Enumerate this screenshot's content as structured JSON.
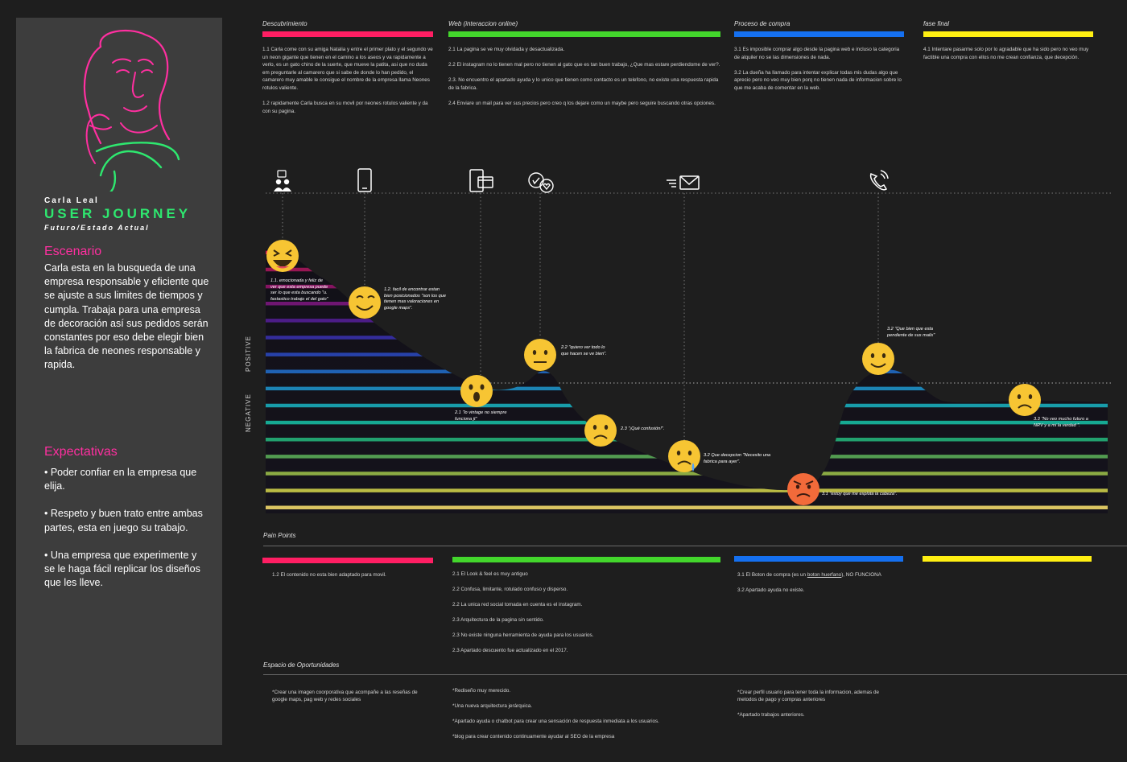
{
  "persona": {
    "name": "Carla Leal",
    "title": "USER JOURNEY",
    "subtitle": "Futuro/Estado Actual"
  },
  "scenario": {
    "heading": "Escenario",
    "text": "Carla esta en la busqueda de una empresa responsable y eficiente que se ajuste a sus limites de tiempos y cumpla. Trabaja para una empresa de decoración así sus pedidos serán constantes por eso debe elegir bien la fabrica de neones responsable y rapida."
  },
  "expectations": {
    "heading": "Expectativas",
    "items": [
      "• Poder confiar en la empresa que elija.",
      "• Respeto y buen trato entre ambas partes, esta en juego su trabajo.",
      "• Una empresa que experimente y se le haga fácil replicar los diseños que les lleve."
    ]
  },
  "stages": [
    {
      "title": "Descubrimiento",
      "color": "#ff1e63",
      "items": [
        "1.1 Carla come con su amiga Natalia y entre el primer plato y el segundo ve un neon gigante que tienen en el camino a los aseos y va rapidamente a verlo, es un gato chino de la suerte, que mueve la patita, asi que no duda em preguntarle al camarero que si sabe de donde lo han pedido, el camarero muy amable le consigue el nombre de la empresa llama Neones rotulos valiente.",
        "1.2 rapidamente Carla busca en su movil por neones rotulos valiente y da con su pagina."
      ]
    },
    {
      "title": "Web (interaccion online)",
      "color": "#43d62c",
      "items": [
        "2.1 La pagina se ve muy olvidada y desactualizada.",
        "2.2 El instagram no lo tienen mal pero no tienen al gato que es tan buen trabajo, ¿Que mas estare perdiendome de ver?.",
        "2.3. No encuentro el apartado ayuda y lo unico que tienen como contacto es un telefono, no existe una respuesta rapida de la fabrica.",
        "2.4 Enviare un mail para ver sus precios pero creo q los dejare como un maybe pero seguire buscando otras opciones."
      ]
    },
    {
      "title": "Proceso de compra",
      "color": "#1570f0",
      "items": [
        "3.1 Es imposible comprar algo desde la pagina web e incluso la categoria de alquiler no se las dimensiones de nada.",
        "3.2 La dueña ha llamado para intentar explicar todas mis dudas algo que aprecio pero no veo muy bien porq no tienen nada de informacion sobre lo que me acaba de comentar en la web."
      ]
    },
    {
      "title": "fase final",
      "color": "#ffef12",
      "items": [
        "4.1 Intentare pasarme solo por lo agradable que ha sido pero no veo muy factible una compra con ellos no me crean confianza, que decepción."
      ]
    }
  ],
  "graph": {
    "positive_label": "POSITIVE",
    "negative_label": "NEGATIVE",
    "touchpoint_icons": [
      "people-chat-icon",
      "smartphone-icon",
      "web-windows-icon",
      "social-reactions-icon",
      "email-icon",
      "phone-call-icon"
    ],
    "moments": [
      {
        "id": "1.1",
        "emotion": "laughing",
        "note": "1.1. emocionada y feliz de ver que esta empresa puede ser lo que esta buscando \"u. fastastico trabajo el del gato\""
      },
      {
        "id": "1.2",
        "emotion": "smiling",
        "note": "1.2.  facil de encontrar estan bien posicionados \"son los que tienen mas valoraciones en google maps\"."
      },
      {
        "id": "2.1",
        "emotion": "surprised",
        "note": "2.1 \"lo vintage no siempre funciona jt\""
      },
      {
        "id": "2.2",
        "emotion": "neutral",
        "note": "2.2 \"quiero ver todo lo que hacen se ve bien\"."
      },
      {
        "id": "2.3",
        "emotion": "sad",
        "note": "2.3 \"¡Qué confusión!\"."
      },
      {
        "id": "3.2a",
        "emotion": "disappointed",
        "note": "3.2  Que decepcion \"Necesito una fabrica para ayer\"."
      },
      {
        "id": "3.1",
        "emotion": "angry",
        "note": "3.1 \"estoy que me explota la cabeza\"."
      },
      {
        "id": "3.2",
        "emotion": "smiling",
        "note": "3.2 \"Que bien que esta pendiente de sus mails\""
      },
      {
        "id": "3.3",
        "emotion": "sad",
        "note": "3.3 \"No veo mucho futuro a NRV y a mi la verdad \"."
      }
    ],
    "stripe_colors": [
      "#ff1e63",
      "#c21c6a",
      "#a8187a",
      "#8a1b8e",
      "#5d22a7",
      "#3e35bf",
      "#2d4fcc",
      "#2474d6",
      "#1f9bd6",
      "#1bb8c8",
      "#17c4aa",
      "#25b87e",
      "#5cb05a",
      "#9bc04a",
      "#cfd04a",
      "#efd86a"
    ]
  },
  "pain_points": {
    "heading": "Pain Points",
    "columns": [
      {
        "color": "#ff1e63",
        "items": [
          "1.2 El contenido no esta bien adaptado para movil."
        ]
      },
      {
        "color": "#43d62c",
        "items": [
          "2.1 El Look & feel es muy antiguo",
          "2.2 Confusa, limitante, rotulado confuso y disperso.",
          "2.2 La unica red social tomada en cuenta es el instagram.",
          "2.3 Arquitectura de la pagina sin sentido.",
          "2.3 No existe ninguna herramienta de ayuda para los usuarios.",
          "2.3 Apartado descuento fue actualizado en el 2017."
        ]
      },
      {
        "color": "#1570f0",
        "items": [
          "3.1 El Boton de compra (es un ",
          "boton huerfano",
          "), NO FUNCIONA",
          "3.2 Apartado ayuda no existe."
        ]
      },
      {
        "color": "#ffef12",
        "items": []
      }
    ]
  },
  "opportunities": {
    "heading": "Espacio de Oportunidades",
    "columns": [
      {
        "items": [
          "*Crear una imagen coorporativa que acompañe a las reseñas de google maps, pag web y redes sociales"
        ]
      },
      {
        "items": [
          "*Rediseño muy merecido.",
          "*Una nueva arquitectura jerárquica.",
          "*Apartado ayuda o chatbot para crear una sensación de respuesta inmediata a los usuarios.",
          "*blog para crear contenido continuamente ayudar al SEO de la empresa"
        ]
      },
      {
        "items": [
          "*Crear perfil usuario para tener toda la informacion, ademas de metodos de pago y compras anteriores",
          "*Apartado trabajos anteriores."
        ]
      }
    ]
  }
}
